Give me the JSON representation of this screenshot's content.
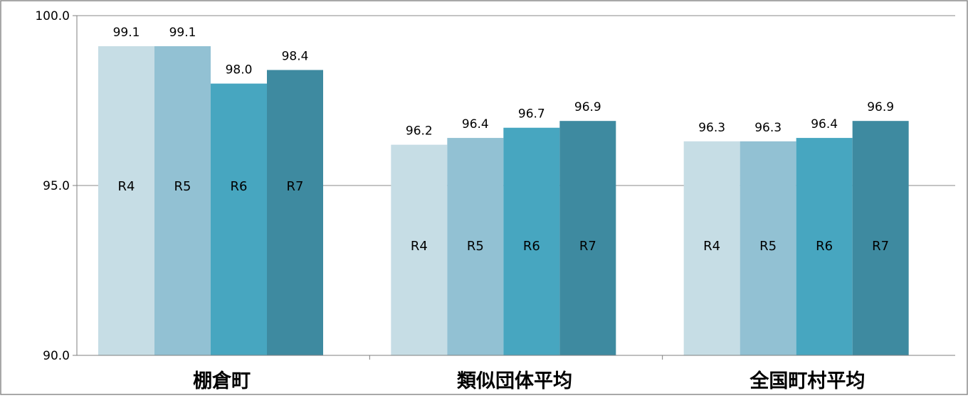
{
  "chart_data": {
    "type": "bar",
    "categories": [
      "棚倉町",
      "類似団体平均",
      "全国町村平均"
    ],
    "series": [
      {
        "name": "R4",
        "values": [
          99.1,
          96.2,
          96.3
        ],
        "color": "#c6dde5"
      },
      {
        "name": "R5",
        "values": [
          99.1,
          96.4,
          96.3
        ],
        "color": "#92c1d3"
      },
      {
        "name": "R6",
        "values": [
          98.0,
          96.7,
          96.4
        ],
        "color": "#47a6c0"
      },
      {
        "name": "R7",
        "values": [
          98.4,
          96.9,
          96.9
        ],
        "color": "#3e8aa0"
      }
    ],
    "ylim": [
      90.0,
      100.0
    ],
    "yticks": [
      "100.0",
      "95.0",
      "90.0"
    ],
    "ytick_values": [
      100.0,
      95.0,
      90.0
    ],
    "title": "",
    "xlabel": "",
    "ylabel": "",
    "grid": true,
    "legend": "none (series names shown inside bars)",
    "gridline_color": "#8a8a8a",
    "axis_color": "#7f7f7f"
  }
}
